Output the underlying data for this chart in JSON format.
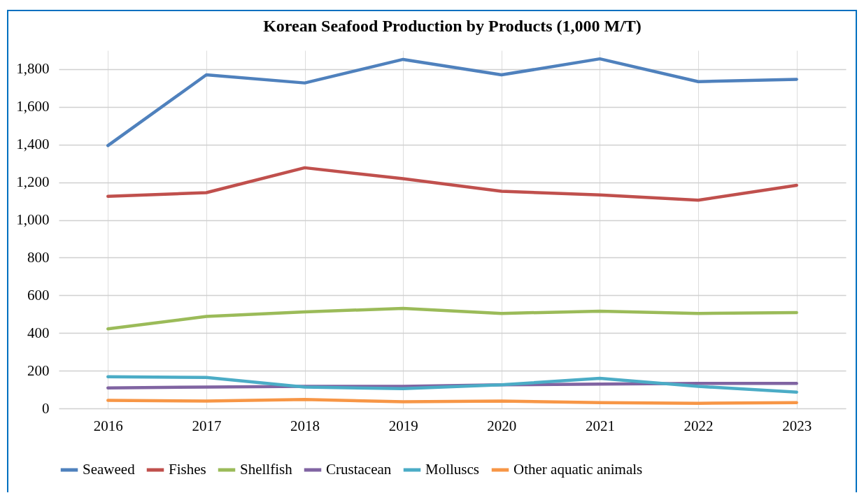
{
  "chart_data": {
    "type": "line",
    "title": "Korean Seafood Production by Products (1,000 M/T)",
    "categories": [
      "2016",
      "2017",
      "2018",
      "2019",
      "2020",
      "2021",
      "2022",
      "2023"
    ],
    "series": [
      {
        "name": "Seaweed",
        "color": "#4f81bd",
        "values": [
          1395,
          1770,
          1727,
          1852,
          1770,
          1855,
          1734,
          1746
        ]
      },
      {
        "name": "Fishes",
        "color": "#c0504d",
        "values": [
          1125,
          1145,
          1277,
          1219,
          1152,
          1133,
          1105,
          1184
        ]
      },
      {
        "name": "Shellfish",
        "color": "#9bbb59",
        "values": [
          422,
          488,
          512,
          531,
          504,
          516,
          504,
          508
        ]
      },
      {
        "name": "Crustacean",
        "color": "#8064a2",
        "values": [
          109,
          113,
          117,
          117,
          125,
          129,
          133,
          133
        ]
      },
      {
        "name": "Molluscs",
        "color": "#4bacc6",
        "values": [
          168,
          164,
          113,
          105,
          125,
          160,
          117,
          86
        ]
      },
      {
        "name": "Other aquatic animals",
        "color": "#f79646",
        "values": [
          43,
          39,
          47,
          35,
          39,
          31,
          27,
          31
        ]
      }
    ],
    "ylim": [
      0,
      1900
    ],
    "yticks": [
      {
        "value": 0,
        "label": "0"
      },
      {
        "value": 200,
        "label": "200"
      },
      {
        "value": 400,
        "label": "400"
      },
      {
        "value": 600,
        "label": "600"
      },
      {
        "value": 800,
        "label": "800"
      },
      {
        "value": 1000,
        "label": "1,000"
      },
      {
        "value": 1200,
        "label": "1,200"
      },
      {
        "value": 1400,
        "label": "1,400"
      },
      {
        "value": 1600,
        "label": "1,600"
      },
      {
        "value": 1800,
        "label": "1,800"
      }
    ],
    "grid": true,
    "legend": "bottom",
    "marker": "none",
    "line_style": "solid"
  }
}
